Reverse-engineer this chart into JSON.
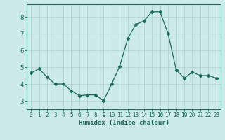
{
  "x": [
    0,
    1,
    2,
    3,
    4,
    5,
    6,
    7,
    8,
    9,
    10,
    11,
    12,
    13,
    14,
    15,
    16,
    17,
    18,
    19,
    20,
    21,
    22,
    23
  ],
  "y": [
    4.65,
    4.9,
    4.4,
    4.0,
    4.0,
    3.6,
    3.3,
    3.35,
    3.35,
    3.0,
    4.0,
    5.05,
    6.7,
    7.55,
    7.75,
    8.3,
    8.3,
    7.0,
    4.85,
    4.35,
    4.7,
    4.5,
    4.5,
    4.35
  ],
  "line_color": "#1a6b5a",
  "marker": "D",
  "marker_size": 2.5,
  "bg_color": "#cceae8",
  "grid_color": "#b0d4d0",
  "axis_color": "#1a6b5a",
  "xlabel": "Humidex (Indice chaleur)",
  "ylim": [
    2.5,
    8.75
  ],
  "xlim": [
    -0.5,
    23.5
  ],
  "yticks": [
    3,
    4,
    5,
    6,
    7,
    8
  ],
  "xticks": [
    0,
    1,
    2,
    3,
    4,
    5,
    6,
    7,
    8,
    9,
    10,
    11,
    12,
    13,
    14,
    15,
    16,
    17,
    18,
    19,
    20,
    21,
    22,
    23
  ]
}
